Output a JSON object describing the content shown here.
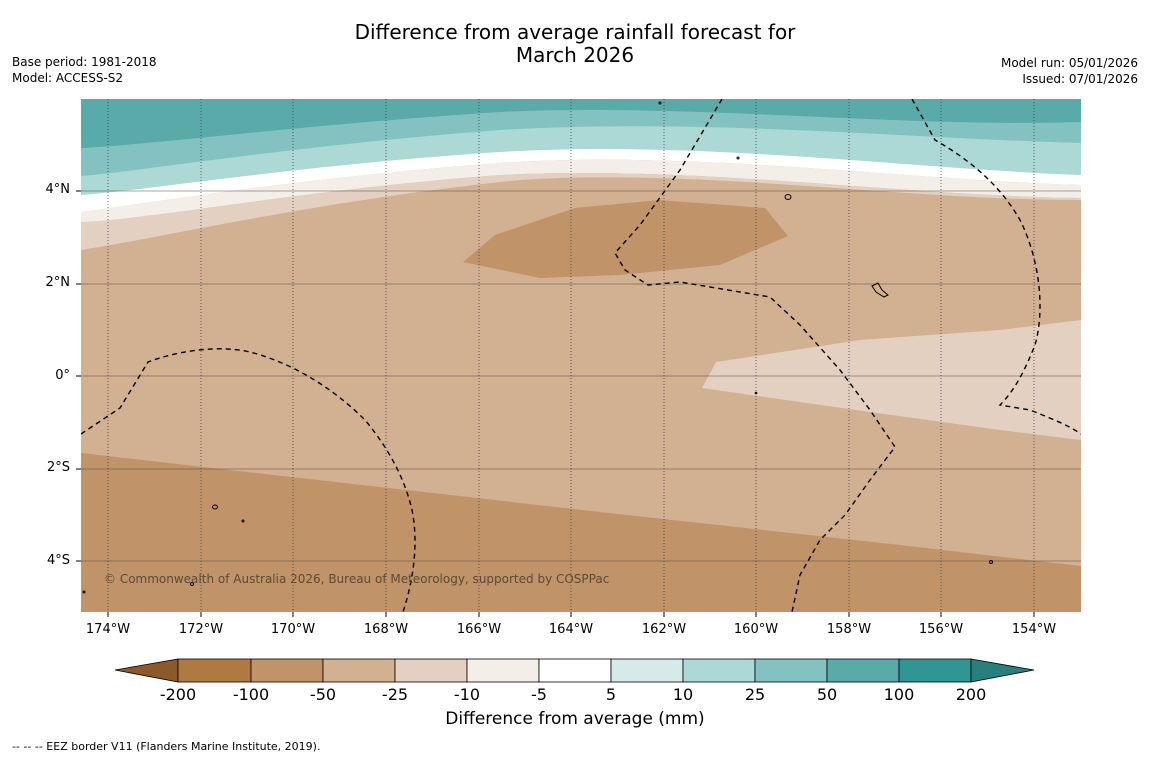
{
  "title": {
    "line1": "Difference from average rainfall forecast for",
    "line2": "March 2026"
  },
  "meta_left": {
    "base_period": "Base period: 1981-2018",
    "model": "Model: ACCESS-S2"
  },
  "meta_right": {
    "model_run": "Model run: 05/01/2026",
    "issued": "Issued: 07/01/2026"
  },
  "map": {
    "latitude_labels": [
      "4°N",
      "2°N",
      "0°",
      "2°S",
      "4°S"
    ],
    "longitude_labels": [
      "174°W",
      "172°W",
      "170°W",
      "168°W",
      "166°W",
      "164°W",
      "162°W",
      "160°W",
      "158°W",
      "156°W",
      "154°W"
    ],
    "copyright": "© Commonwealth of Australia 2026, Bureau of Meteorology, supported by COSPPac"
  },
  "colorbar": {
    "ticks": [
      "-200",
      "-100",
      "-50",
      "-25",
      "-10",
      "-5",
      "5",
      "10",
      "25",
      "50",
      "100",
      "200"
    ],
    "colors": [
      "#ae7a42",
      "#c09468",
      "#d2b092",
      "#e3d0c0",
      "#f4eee8",
      "#ffffff",
      "#d6ebe9",
      "#acd8d6",
      "#83c2c0",
      "#5aaaaa",
      "#319594"
    ],
    "under_color": "#8c5a2a",
    "over_color": "#287f7d",
    "title": "Difference from average (mm)"
  },
  "footnote": "--  --  -- EEZ border V11 (Flanders Marine Institute, 2019)."
}
